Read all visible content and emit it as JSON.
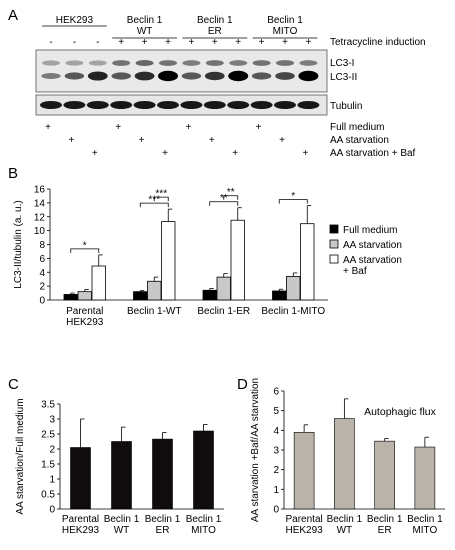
{
  "panel_a": {
    "letter": "A",
    "groups": [
      "HEK293",
      "Beclin 1\nWT",
      "Beclin 1\nER",
      "Beclin 1\nMITO"
    ],
    "tet_signs": [
      "-",
      "-",
      "-",
      "+",
      "+",
      "+",
      "+",
      "+",
      "+",
      "+",
      "+",
      "+"
    ],
    "tet_label": "Tetracycline induction",
    "band_labels": [
      "LC3-I",
      "LC3-II",
      "Tubulin"
    ],
    "lc3i_intensity": [
      0.35,
      0.35,
      0.35,
      0.6,
      0.65,
      0.6,
      0.55,
      0.6,
      0.55,
      0.6,
      0.6,
      0.55
    ],
    "lc3ii_intensity": [
      0.3,
      0.5,
      0.8,
      0.5,
      0.75,
      1.0,
      0.5,
      0.7,
      1.0,
      0.5,
      0.6,
      1.0
    ],
    "conditions": [
      {
        "label": "Full medium",
        "lanes": [
          0,
          3,
          6,
          9
        ]
      },
      {
        "label": "AA starvation",
        "lanes": [
          1,
          4,
          7,
          10
        ]
      },
      {
        "label": "AA starvation + Baf",
        "lanes": [
          2,
          5,
          8,
          11
        ]
      }
    ],
    "plus": "+"
  },
  "chart_data": [
    {
      "id": "B",
      "type": "bar",
      "title": "",
      "letter": "B",
      "categories": [
        "Parental\nHEK293",
        "Beclin 1-WT",
        "Beclin 1-ER",
        "Beclin 1-MITO"
      ],
      "series": [
        {
          "name": "Full medium",
          "color": "#000000",
          "values": [
            0.8,
            1.2,
            1.4,
            1.3
          ],
          "errors": [
            0.2,
            0.15,
            0.25,
            0.25
          ]
        },
        {
          "name": "AA starvation",
          "color": "#c8c8c8",
          "values": [
            1.2,
            2.7,
            3.3,
            3.4
          ],
          "errors": [
            0.3,
            0.6,
            0.5,
            0.5
          ]
        },
        {
          "name": "AA starvation\n+ Baf",
          "color": "#ffffff",
          "values": [
            4.9,
            11.3,
            11.5,
            11.0
          ],
          "errors": [
            1.6,
            1.8,
            1.8,
            2.6
          ]
        }
      ],
      "ylabel": "LC3-II/tubulin (a. u.)",
      "ylim": [
        0,
        16
      ],
      "yticks": [
        0,
        2,
        4,
        6,
        8,
        10,
        12,
        14,
        16
      ],
      "legend": "right",
      "significance": [
        {
          "group": 0,
          "from": 0,
          "to": 2,
          "label": "*"
        },
        {
          "group": 1,
          "from": 0,
          "to": 2,
          "label": "***"
        },
        {
          "group": 1,
          "from": 1,
          "to": 2,
          "label": "***"
        },
        {
          "group": 2,
          "from": 0,
          "to": 2,
          "label": "**"
        },
        {
          "group": 2,
          "from": 1,
          "to": 2,
          "label": "**"
        },
        {
          "group": 3,
          "from": 0,
          "to": 2,
          "label": "*"
        }
      ]
    },
    {
      "id": "C",
      "type": "bar",
      "title": "",
      "letter": "C",
      "categories": [
        "Parental\nHEK293",
        "Beclin 1\nWT",
        "Beclin 1\nER",
        "Beclin 1\nMITO"
      ],
      "values": [
        2.05,
        2.25,
        2.33,
        2.6
      ],
      "errors": [
        0.95,
        0.48,
        0.22,
        0.22
      ],
      "color": "#100b0c",
      "ylabel": "AA starvation/Full medium",
      "ylim": [
        0,
        3.5
      ],
      "yticks": [
        0,
        0.5,
        1,
        1.5,
        2,
        2.5,
        3,
        3.5
      ]
    },
    {
      "id": "D",
      "type": "bar",
      "title": "Autophagic flux",
      "letter": "D",
      "categories": [
        "Parental\nHEK293",
        "Beclin 1\nWT",
        "Beclin 1\nER",
        "Beclin 1\nMITO"
      ],
      "values": [
        3.9,
        4.6,
        3.45,
        3.15
      ],
      "errors": [
        0.38,
        1.0,
        0.13,
        0.5
      ],
      "color": "#bab3aa",
      "ylabel": "AA starvation +Baf/AA starvation",
      "ylim": [
        0,
        6
      ],
      "yticks": [
        0,
        1,
        2,
        3,
        4,
        5,
        6
      ]
    }
  ]
}
